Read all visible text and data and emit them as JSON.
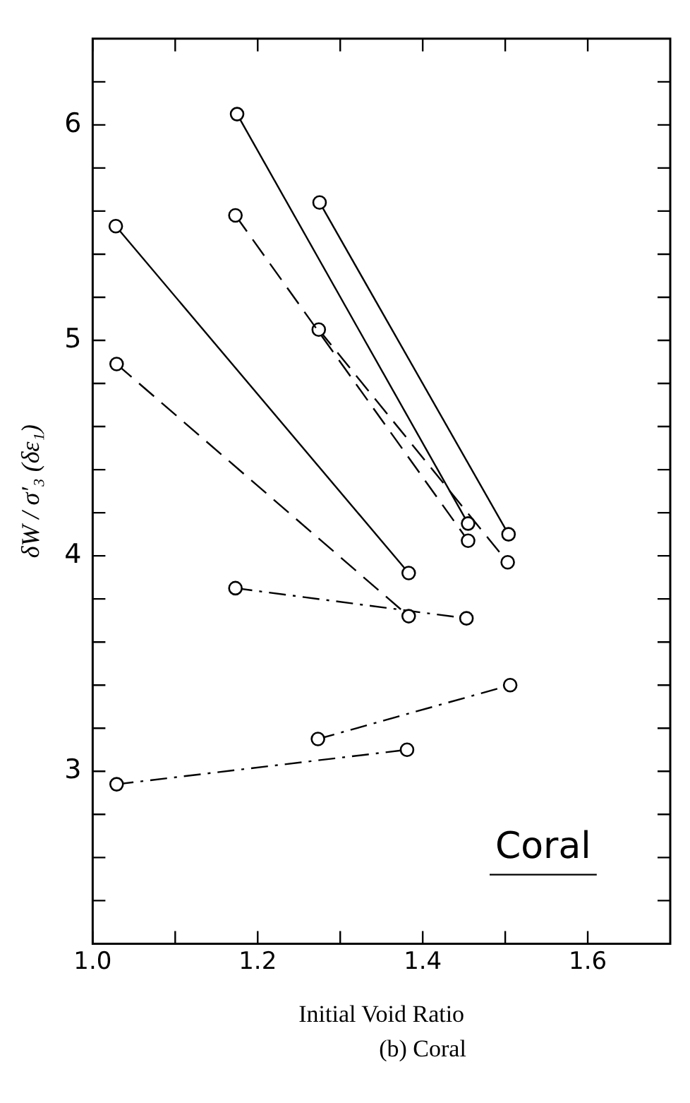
{
  "chart_data": {
    "type": "line",
    "xlabel": "Initial Void Ratio",
    "ylabel": "δW / σ′₃ (δε₁)",
    "annotations": [
      "Coral",
      "(b) Coral"
    ],
    "xlim": [
      1.0,
      1.7
    ],
    "ylim": [
      2.2,
      6.4
    ],
    "xticks": [
      {
        "value": 1.0,
        "label": "1.0"
      },
      {
        "value": 1.1,
        "label": null
      },
      {
        "value": 1.2,
        "label": "1.2"
      },
      {
        "value": 1.3,
        "label": null
      },
      {
        "value": 1.4,
        "label": "1.4"
      },
      {
        "value": 1.5,
        "label": null
      },
      {
        "value": 1.6,
        "label": "1.6"
      }
    ],
    "yticks": [
      {
        "value": 2.4,
        "label": null
      },
      {
        "value": 2.6,
        "label": null
      },
      {
        "value": 2.8,
        "label": null
      },
      3,
      {
        "value": 3.2,
        "label": null
      },
      {
        "value": 3.4,
        "label": null
      },
      {
        "value": 3.6,
        "label": null
      },
      {
        "value": 3.8,
        "label": null
      },
      4,
      {
        "value": 4.2,
        "label": null
      },
      {
        "value": 4.4,
        "label": null
      },
      {
        "value": 4.6,
        "label": null
      },
      {
        "value": 4.8,
        "label": null
      },
      5,
      {
        "value": 5.2,
        "label": null
      },
      {
        "value": 5.4,
        "label": null
      },
      {
        "value": 5.6,
        "label": null
      },
      {
        "value": 5.8,
        "label": null
      },
      6,
      {
        "value": 6.2,
        "label": null
      }
    ],
    "grid": false,
    "legend": false,
    "marker": "circle",
    "series": [
      {
        "color": "#000000",
        "line_style": "solid",
        "x": [
          1.175,
          1.455
        ],
        "values": [
          6.05,
          4.15
        ]
      },
      {
        "color": "#000000",
        "line_style": "dashed",
        "x": [
          1.173,
          1.455
        ],
        "values": [
          5.58,
          4.07
        ]
      },
      {
        "color": "#000000",
        "line_style": "solid",
        "x": [
          1.275,
          1.504
        ],
        "values": [
          5.64,
          4.1
        ]
      },
      {
        "color": "#000000",
        "line_style": "dashed",
        "x": [
          1.274,
          1.503
        ],
        "values": [
          5.05,
          3.97
        ]
      },
      {
        "color": "#000000",
        "line_style": "solid",
        "x": [
          1.028,
          1.383
        ],
        "values": [
          5.53,
          3.92
        ]
      },
      {
        "color": "#000000",
        "line_style": "dashed",
        "x": [
          1.029,
          1.383
        ],
        "values": [
          4.89,
          3.72
        ]
      },
      {
        "color": "#000000",
        "line_style": "dashdot",
        "x": [
          1.173,
          1.453
        ],
        "values": [
          3.85,
          3.71
        ]
      },
      {
        "color": "#000000",
        "line_style": "dashdot",
        "x": [
          1.273,
          1.506
        ],
        "values": [
          3.15,
          3.4
        ]
      },
      {
        "color": "#000000",
        "line_style": "dashdot",
        "x": [
          1.029,
          1.381
        ],
        "values": [
          2.94,
          3.1
        ]
      }
    ]
  }
}
